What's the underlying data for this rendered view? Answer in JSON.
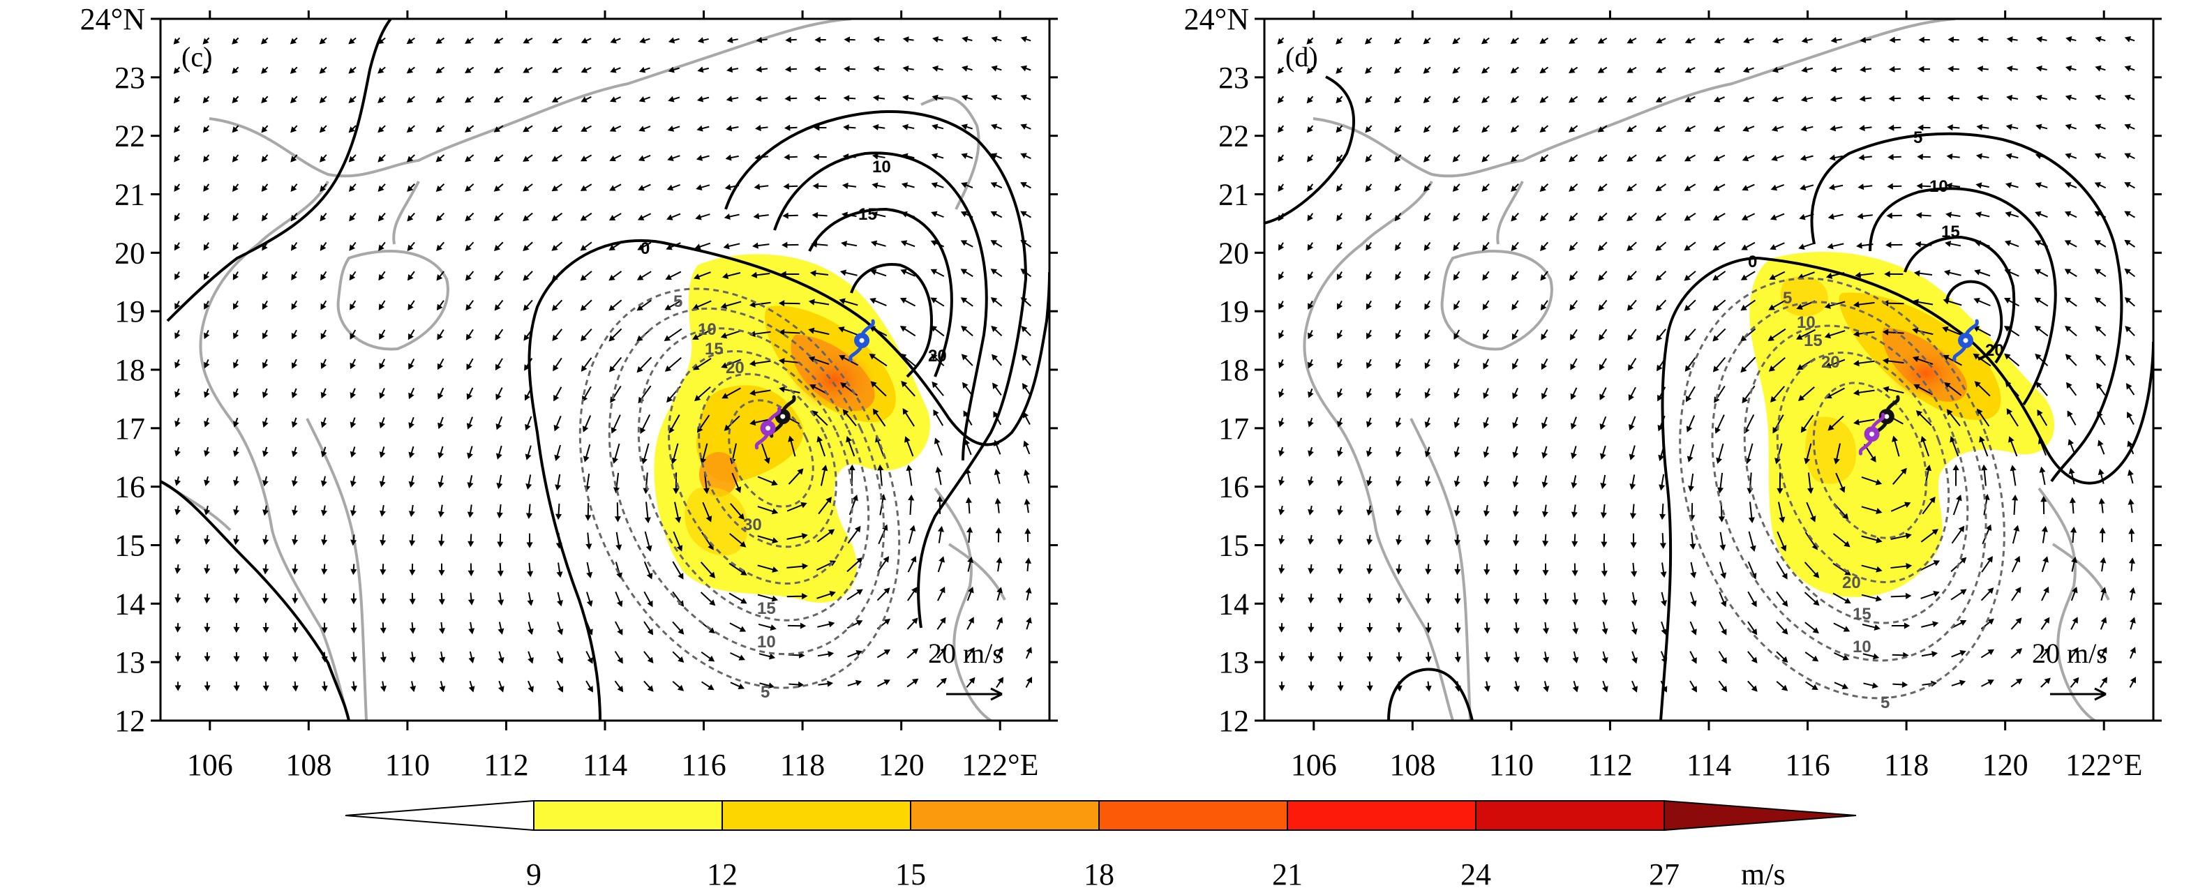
{
  "axes": {
    "lon_labels": [
      "106",
      "108",
      "110",
      "112",
      "114",
      "116",
      "118",
      "120",
      "122°E"
    ],
    "lon_values": [
      106,
      108,
      110,
      112,
      114,
      116,
      118,
      120,
      122
    ],
    "lat_labels": [
      "24°N",
      "23",
      "22",
      "21",
      "20",
      "19",
      "18",
      "17",
      "16",
      "15",
      "14",
      "13",
      "12"
    ],
    "lat_values": [
      24,
      23,
      22,
      21,
      20,
      19,
      18,
      17,
      16,
      15,
      14,
      13,
      12
    ],
    "lon_range": [
      105,
      123
    ],
    "lat_range": [
      12,
      24
    ]
  },
  "panels": [
    {
      "id": "c",
      "label": "(c)",
      "reference_vector": "20 m/s",
      "positive_contours": [
        {
          "value": 0,
          "label": "0"
        },
        {
          "value": 10,
          "label": "10"
        },
        {
          "value": 15,
          "label": "15"
        },
        {
          "value": 20,
          "label": "20"
        }
      ],
      "negative_contours": [
        {
          "value": -5,
          "label": "5"
        },
        {
          "value": -10,
          "label": "10"
        },
        {
          "value": -15,
          "label": "15"
        },
        {
          "value": -20,
          "label": "20"
        },
        {
          "value": -30,
          "label": "30"
        }
      ],
      "typhoon_markers": [
        {
          "lon": 119.2,
          "lat": 18.5,
          "color": "#2255dd"
        },
        {
          "lon": 117.6,
          "lat": 17.2,
          "color": "#111111"
        },
        {
          "lon": 117.3,
          "lat": 17.0,
          "color": "#9933cc"
        }
      ]
    },
    {
      "id": "d",
      "label": "(d)",
      "reference_vector": "20 m/s",
      "positive_contours": [
        {
          "value": 0,
          "label": "0"
        },
        {
          "value": 5,
          "label": "5"
        },
        {
          "value": 10,
          "label": "10"
        },
        {
          "value": 15,
          "label": "15"
        },
        {
          "value": 20,
          "label": "20"
        }
      ],
      "negative_contours": [
        {
          "value": -5,
          "label": "5"
        },
        {
          "value": -10,
          "label": "10"
        },
        {
          "value": -15,
          "label": "15"
        },
        {
          "value": -20,
          "label": "20"
        }
      ],
      "typhoon_markers": [
        {
          "lon": 119.2,
          "lat": 18.5,
          "color": "#2255dd"
        },
        {
          "lon": 117.6,
          "lat": 17.2,
          "color": "#111111"
        },
        {
          "lon": 117.3,
          "lat": 16.9,
          "color": "#9933cc"
        }
      ]
    }
  ],
  "colorbar": {
    "labels": [
      "9",
      "12",
      "15",
      "18",
      "21",
      "24",
      "27"
    ],
    "values": [
      9,
      12,
      15,
      18,
      21,
      24,
      27
    ],
    "colors": [
      "#fdfb36",
      "#fdd600",
      "#fb9a0d",
      "#fc5a06",
      "#fd1a0a",
      "#d20a08"
    ],
    "over_color": "#8c0a0a",
    "under_color": "#ffffff",
    "unit": "m/s"
  }
}
